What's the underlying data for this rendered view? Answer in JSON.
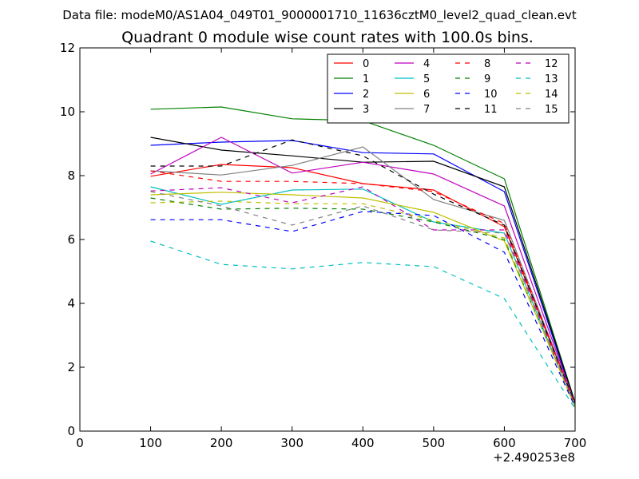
{
  "header": {
    "datafile": "Data file: modeM0/AS1A04_049T01_9000001710_11636cztM0_level2_quad_clean.evt"
  },
  "chart_data": {
    "type": "line",
    "title": "Quadrant 0 module wise count rates with 100.0s bins.",
    "xlabel": "",
    "ylabel": "",
    "x_offset_label": "+2.490253e8",
    "xlim": [
      0,
      700
    ],
    "ylim": [
      0,
      12
    ],
    "xticks": [
      0,
      100,
      200,
      300,
      400,
      500,
      600,
      700
    ],
    "yticks": [
      0,
      2,
      4,
      6,
      8,
      10,
      12
    ],
    "legend_position": "top-right",
    "legend_columns": 4,
    "x": [
      100,
      200,
      300,
      400,
      500,
      600,
      700
    ],
    "series": [
      {
        "name": "0",
        "color": "#ff0000",
        "style": "solid",
        "values": [
          7.98,
          8.35,
          8.25,
          7.75,
          7.55,
          6.4,
          0.85
        ]
      },
      {
        "name": "1",
        "color": "#008000",
        "style": "solid",
        "values": [
          10.08,
          10.15,
          9.78,
          9.72,
          8.95,
          7.9,
          0.9
        ]
      },
      {
        "name": "2",
        "color": "#0000ff",
        "style": "solid",
        "values": [
          8.95,
          9.05,
          9.1,
          8.72,
          8.68,
          7.5,
          0.85
        ]
      },
      {
        "name": "3",
        "color": "#000000",
        "style": "solid",
        "values": [
          9.2,
          8.8,
          8.62,
          8.42,
          8.45,
          7.65,
          0.9
        ]
      },
      {
        "name": "4",
        "color": "#bf00bf",
        "style": "solid",
        "values": [
          8.05,
          9.2,
          8.08,
          8.42,
          8.05,
          7.05,
          0.85
        ]
      },
      {
        "name": "5",
        "color": "#00bfbf",
        "style": "solid",
        "values": [
          7.65,
          7.1,
          7.55,
          7.58,
          6.55,
          6.2,
          0.75
        ]
      },
      {
        "name": "6",
        "color": "#bfbf00",
        "style": "solid",
        "values": [
          7.4,
          7.48,
          7.4,
          7.3,
          6.85,
          5.95,
          0.8
        ]
      },
      {
        "name": "7",
        "color": "#808080",
        "style": "solid",
        "values": [
          8.15,
          8.02,
          8.32,
          8.9,
          7.25,
          6.6,
          0.85
        ]
      },
      {
        "name": "8",
        "color": "#ff0000",
        "style": "dashed",
        "values": [
          8.15,
          7.82,
          7.82,
          7.75,
          7.5,
          6.5,
          0.85
        ]
      },
      {
        "name": "9",
        "color": "#008000",
        "style": "dashed",
        "values": [
          7.3,
          6.95,
          6.98,
          6.95,
          6.55,
          6.0,
          0.8
        ]
      },
      {
        "name": "10",
        "color": "#0000ff",
        "style": "dashed",
        "values": [
          6.62,
          6.62,
          6.25,
          6.88,
          6.75,
          5.6,
          0.75
        ]
      },
      {
        "name": "11",
        "color": "#000000",
        "style": "dashed",
        "values": [
          8.3,
          8.3,
          9.12,
          8.62,
          7.42,
          6.45,
          0.85
        ]
      },
      {
        "name": "12",
        "color": "#bf00bf",
        "style": "dashed",
        "values": [
          7.52,
          7.62,
          7.15,
          7.65,
          6.3,
          6.3,
          0.8
        ]
      },
      {
        "name": "13",
        "color": "#00bfbf",
        "style": "dashed",
        "values": [
          5.95,
          5.22,
          5.08,
          5.28,
          5.15,
          4.15,
          0.7
        ]
      },
      {
        "name": "14",
        "color": "#bfbf00",
        "style": "dashed",
        "values": [
          7.15,
          7.2,
          7.12,
          7.12,
          6.6,
          6.05,
          0.75
        ]
      },
      {
        "name": "15",
        "color": "#808080",
        "style": "dashed",
        "values": [
          7.5,
          7.05,
          6.45,
          7.05,
          6.3,
          6.2,
          0.8
        ]
      }
    ]
  }
}
